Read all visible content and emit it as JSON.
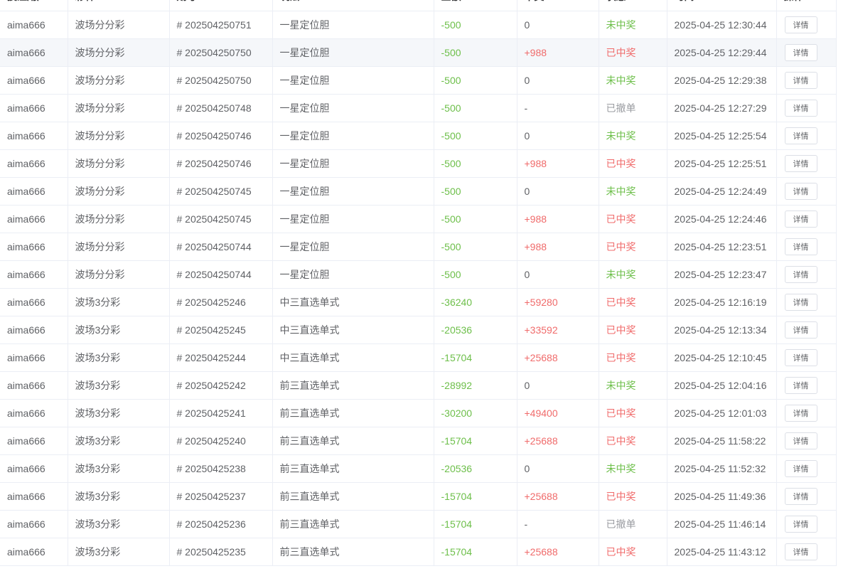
{
  "table": {
    "header": [
      "投注用户",
      "彩种",
      "期号",
      "玩法",
      "金额",
      "中奖",
      "状态",
      "时间",
      "操作"
    ],
    "rows": [
      [
        "aima666",
        "波场分分彩",
        "# 202504250751",
        "一星定位胆",
        "-500",
        "0",
        "未中奖",
        "2025-04-25 12:30:44",
        "详情"
      ],
      [
        "aima666",
        "波场分分彩",
        "# 202504250750",
        "一星定位胆",
        "-500",
        "+988",
        "已中奖",
        "2025-04-25 12:29:44",
        "详情"
      ],
      [
        "aima666",
        "波场分分彩",
        "# 202504250750",
        "一星定位胆",
        "-500",
        "0",
        "未中奖",
        "2025-04-25 12:29:38",
        "详情"
      ],
      [
        "aima666",
        "波场分分彩",
        "# 202504250748",
        "一星定位胆",
        "-500",
        "-",
        "已撤单",
        "2025-04-25 12:27:29",
        "详情"
      ],
      [
        "aima666",
        "波场分分彩",
        "# 202504250746",
        "一星定位胆",
        "-500",
        "0",
        "未中奖",
        "2025-04-25 12:25:54",
        "详情"
      ],
      [
        "aima666",
        "波场分分彩",
        "# 202504250746",
        "一星定位胆",
        "-500",
        "+988",
        "已中奖",
        "2025-04-25 12:25:51",
        "详情"
      ],
      [
        "aima666",
        "波场分分彩",
        "# 202504250745",
        "一星定位胆",
        "-500",
        "0",
        "未中奖",
        "2025-04-25 12:24:49",
        "详情"
      ],
      [
        "aima666",
        "波场分分彩",
        "# 202504250745",
        "一星定位胆",
        "-500",
        "+988",
        "已中奖",
        "2025-04-25 12:24:46",
        "详情"
      ],
      [
        "aima666",
        "波场分分彩",
        "# 202504250744",
        "一星定位胆",
        "-500",
        "+988",
        "已中奖",
        "2025-04-25 12:23:51",
        "详情"
      ],
      [
        "aima666",
        "波场分分彩",
        "# 202504250744",
        "一星定位胆",
        "-500",
        "0",
        "未中奖",
        "2025-04-25 12:23:47",
        "详情"
      ],
      [
        "aima666",
        "波场3分彩",
        "# 20250425246",
        "中三直选单式",
        "-36240",
        "+59280",
        "已中奖",
        "2025-04-25 12:16:19",
        "详情"
      ],
      [
        "aima666",
        "波场3分彩",
        "# 20250425245",
        "中三直选单式",
        "-20536",
        "+33592",
        "已中奖",
        "2025-04-25 12:13:34",
        "详情"
      ],
      [
        "aima666",
        "波场3分彩",
        "# 20250425244",
        "中三直选单式",
        "-15704",
        "+25688",
        "已中奖",
        "2025-04-25 12:10:45",
        "详情"
      ],
      [
        "aima666",
        "波场3分彩",
        "# 20250425242",
        "前三直选单式",
        "-28992",
        "0",
        "未中奖",
        "2025-04-25 12:04:16",
        "详情"
      ],
      [
        "aima666",
        "波场3分彩",
        "# 20250425241",
        "前三直选单式",
        "-30200",
        "+49400",
        "已中奖",
        "2025-04-25 12:01:03",
        "详情"
      ],
      [
        "aima666",
        "波场3分彩",
        "# 20250425240",
        "前三直选单式",
        "-15704",
        "+25688",
        "已中奖",
        "2025-04-25 11:58:22",
        "详情"
      ],
      [
        "aima666",
        "波场3分彩",
        "# 20250425238",
        "前三直选单式",
        "-20536",
        "0",
        "未中奖",
        "2025-04-25 11:52:32",
        "详情"
      ],
      [
        "aima666",
        "波场3分彩",
        "# 20250425237",
        "前三直选单式",
        "-15704",
        "+25688",
        "已中奖",
        "2025-04-25 11:49:36",
        "详情"
      ],
      [
        "aima666",
        "波场3分彩",
        "# 20250425236",
        "前三直选单式",
        "-15704",
        "-",
        "已撤单",
        "2025-04-25 11:46:14",
        "详情"
      ],
      [
        "aima666",
        "波场3分彩",
        "# 20250425235",
        "前三直选单式",
        "-15704",
        "+25688",
        "已中奖",
        "2025-04-25 11:43:12",
        "详情"
      ]
    ]
  }
}
